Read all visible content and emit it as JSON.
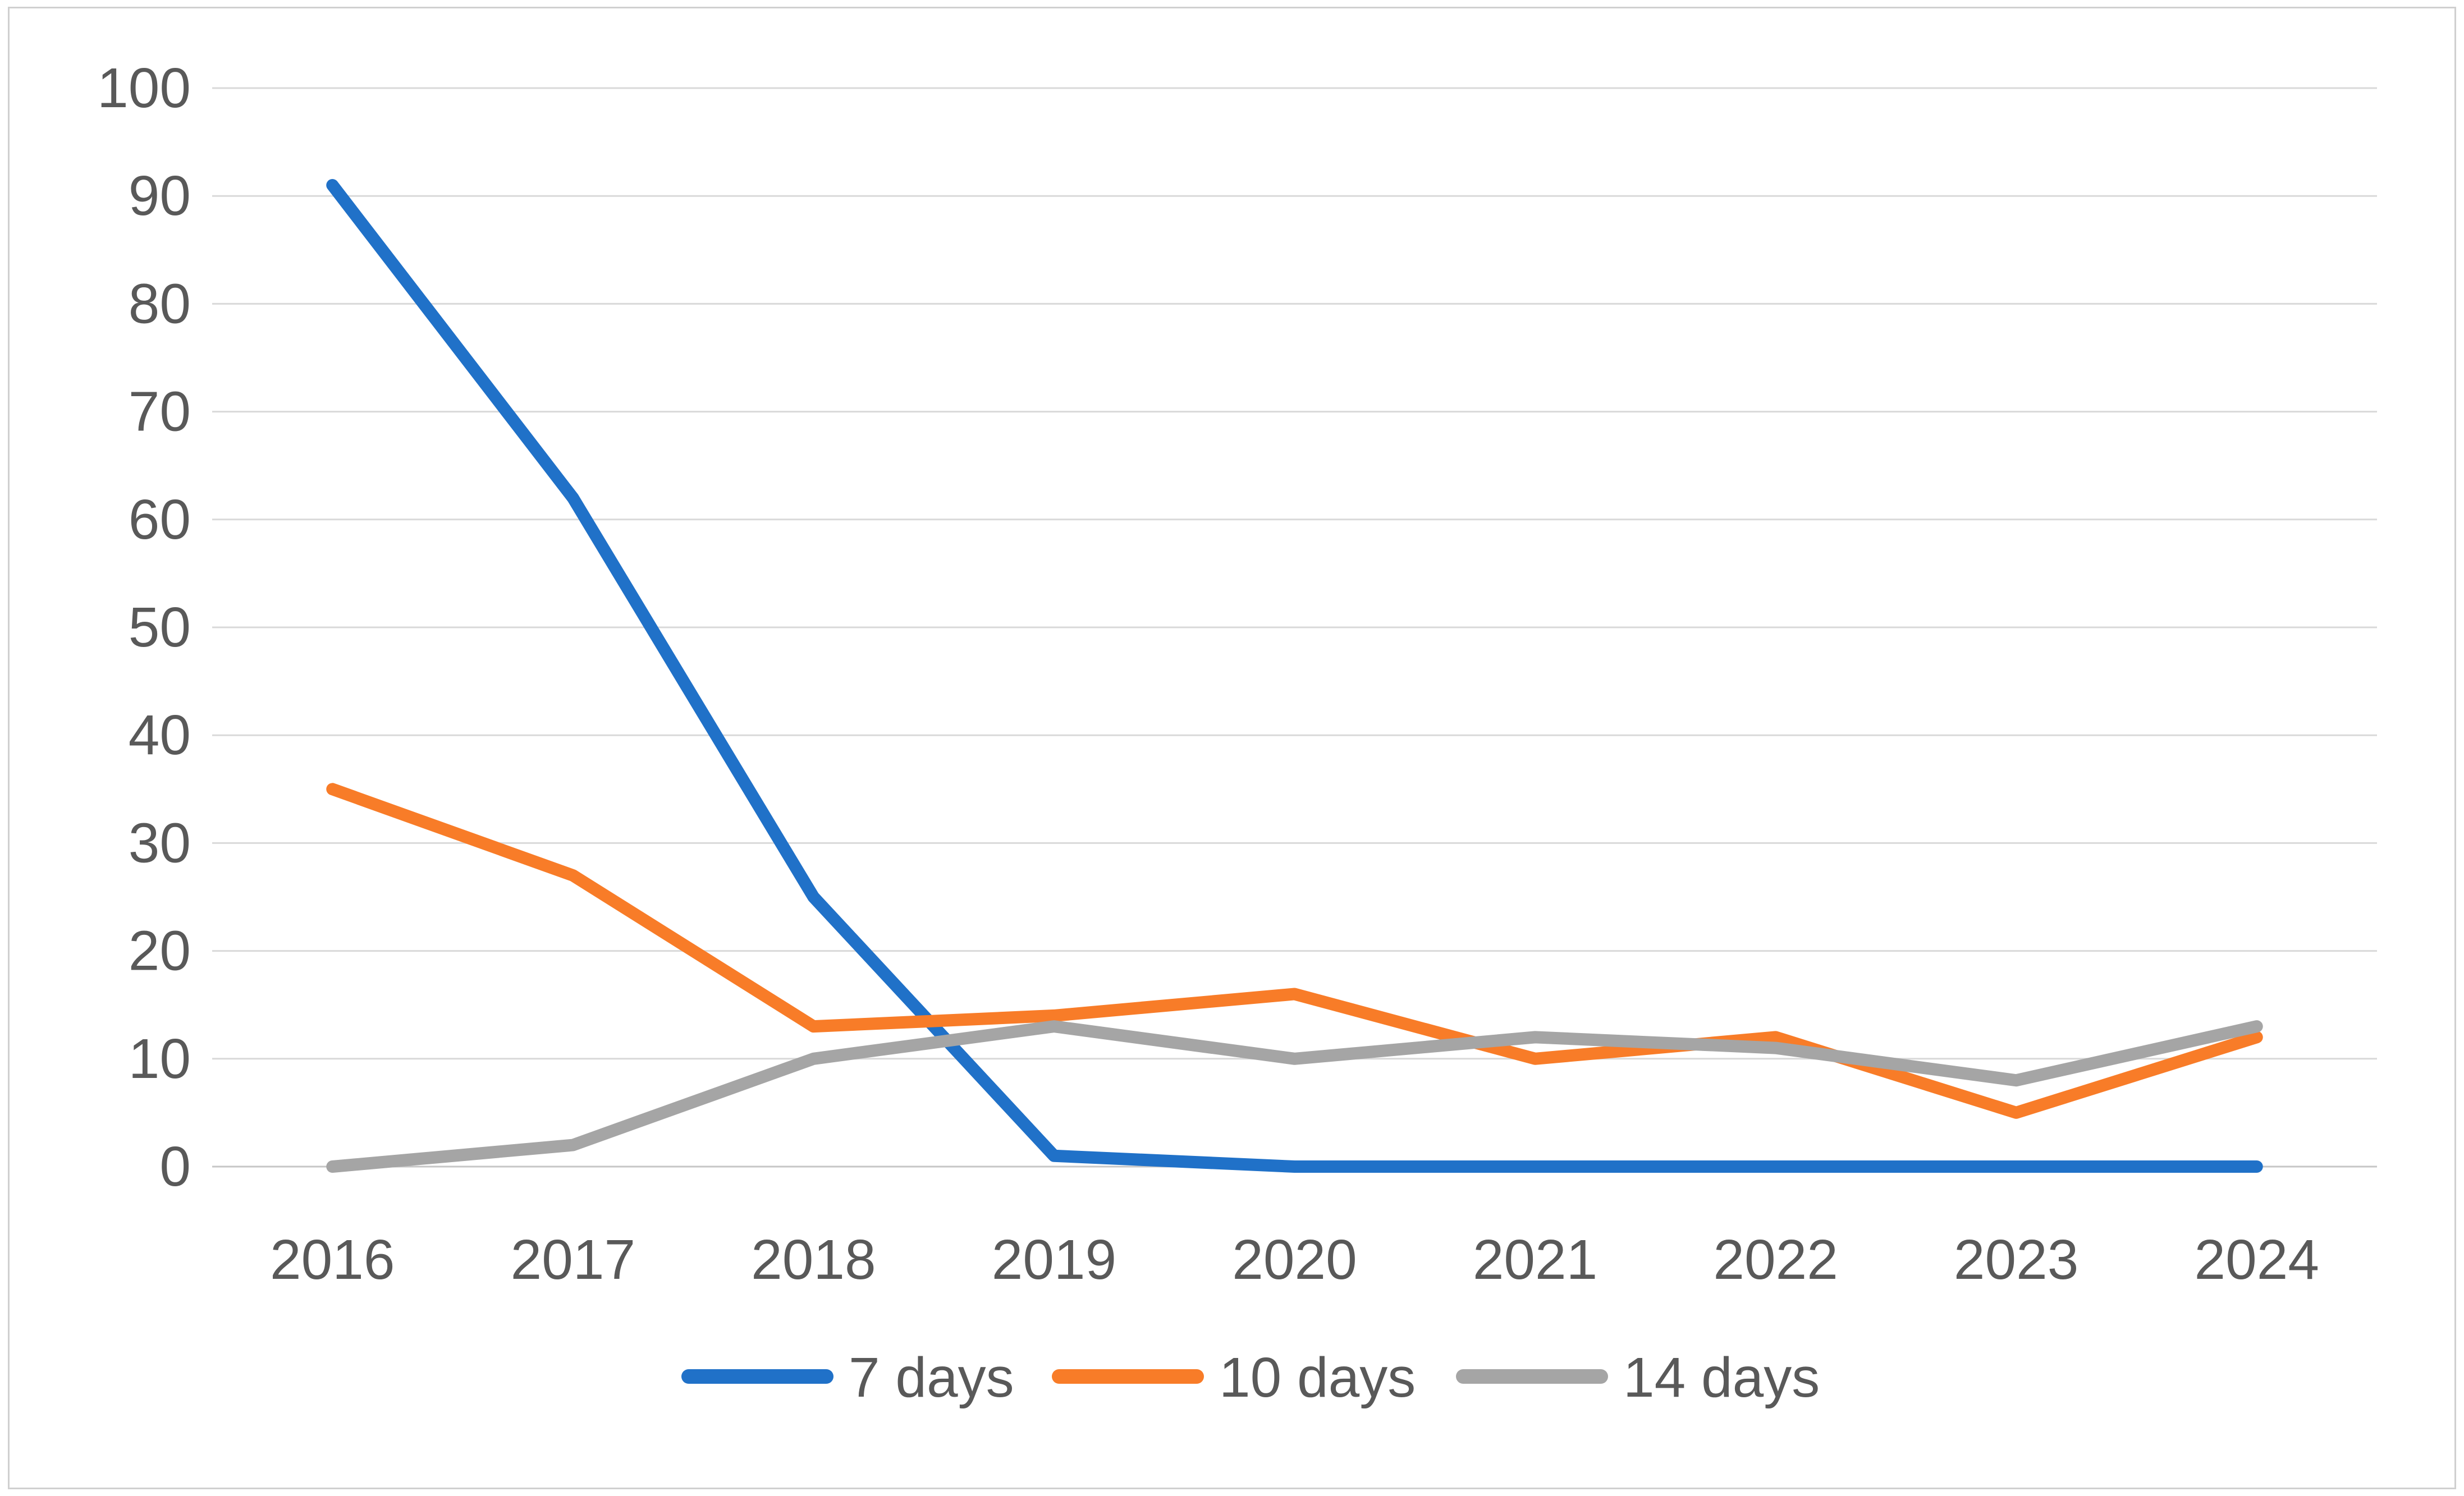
{
  "chart_data": {
    "type": "line",
    "title": "",
    "xlabel": "",
    "ylabel": "",
    "categories": [
      "2016",
      "2017",
      "2018",
      "2019",
      "2020",
      "2021",
      "2022",
      "2023",
      "2024"
    ],
    "series": [
      {
        "name": "7 days",
        "color": "#2071c8",
        "values": [
          91,
          62,
          25,
          1,
          0,
          0,
          0,
          0,
          0
        ]
      },
      {
        "name": "10 days",
        "color": "#f87c28",
        "values": [
          35,
          27,
          13,
          14,
          16,
          10,
          12,
          5,
          12
        ]
      },
      {
        "name": "14 days",
        "color": "#a5a5a5",
        "values": [
          0,
          2,
          10,
          13,
          10,
          12,
          11,
          8,
          13
        ]
      }
    ],
    "ylim": [
      0,
      100
    ],
    "ytick_step": 10,
    "yticks": [
      0,
      10,
      20,
      30,
      40,
      50,
      60,
      70,
      80,
      90,
      100
    ],
    "grid": "horizontal",
    "legend_position": "bottom"
  },
  "style": {
    "tick_label_color": "#595959",
    "gridline_color": "#d9d9d9",
    "axis_line_color": "#c6c6c6",
    "figure_border_color": "#d0d0d0",
    "background_color": "#ffffff"
  }
}
